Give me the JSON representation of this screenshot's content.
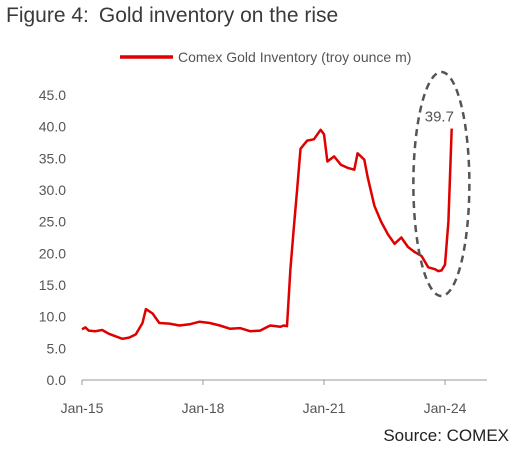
{
  "header": {
    "figure_number": "Figure 4:",
    "title": "Gold inventory on the rise"
  },
  "source": "Source: COMEX",
  "chart_data": {
    "type": "line",
    "title": "Gold inventory on the rise",
    "xlabel": "",
    "ylabel": "",
    "ylim": [
      0,
      45
    ],
    "yticks": [
      "0.0",
      "5.0",
      "10.0",
      "15.0",
      "20.0",
      "25.0",
      "30.0",
      "35.0",
      "40.0",
      "45.0"
    ],
    "xticks": [
      {
        "label": "Jan-15",
        "x": "2015-01"
      },
      {
        "label": "Jan-18",
        "x": "2018-01"
      },
      {
        "label": "Jan-21",
        "x": "2021-01"
      },
      {
        "label": "Jan-24",
        "x": "2024-01"
      }
    ],
    "xlim": [
      "2015-01",
      "2024-03"
    ],
    "grid": false,
    "legend": "top",
    "annotation": {
      "text": "39.7",
      "x": "2024-02",
      "y": 39.7,
      "style": "dashed ellipse"
    },
    "series": [
      {
        "name": "Comex Gold Inventory (troy ounce m)",
        "color": "#e00000",
        "points": [
          [
            "2015-01",
            8.0
          ],
          [
            "2015-02",
            8.3
          ],
          [
            "2015-03",
            7.8
          ],
          [
            "2015-05",
            7.7
          ],
          [
            "2015-07",
            7.9
          ],
          [
            "2015-09",
            7.3
          ],
          [
            "2015-11",
            6.9
          ],
          [
            "2016-01",
            6.5
          ],
          [
            "2016-03",
            6.7
          ],
          [
            "2016-05",
            7.2
          ],
          [
            "2016-07",
            9.0
          ],
          [
            "2016-08",
            11.2
          ],
          [
            "2016-10",
            10.5
          ],
          [
            "2016-12",
            9.0
          ],
          [
            "2017-03",
            8.9
          ],
          [
            "2017-06",
            8.6
          ],
          [
            "2017-09",
            8.8
          ],
          [
            "2017-12",
            9.2
          ],
          [
            "2018-03",
            9.0
          ],
          [
            "2018-06",
            8.6
          ],
          [
            "2018-09",
            8.1
          ],
          [
            "2018-12",
            8.2
          ],
          [
            "2019-03",
            7.7
          ],
          [
            "2019-06",
            7.8
          ],
          [
            "2019-09",
            8.6
          ],
          [
            "2019-12",
            8.4
          ],
          [
            "2020-01",
            8.6
          ],
          [
            "2020-02",
            8.5
          ],
          [
            "2020-03",
            17.5
          ],
          [
            "2020-04",
            24.0
          ],
          [
            "2020-05",
            30.0
          ],
          [
            "2020-06",
            36.5
          ],
          [
            "2020-08",
            37.8
          ],
          [
            "2020-10",
            38.0
          ],
          [
            "2020-12",
            39.5
          ],
          [
            "2021-01",
            38.8
          ],
          [
            "2021-02",
            34.5
          ],
          [
            "2021-04",
            35.3
          ],
          [
            "2021-06",
            34.0
          ],
          [
            "2021-08",
            33.5
          ],
          [
            "2021-10",
            33.2
          ],
          [
            "2021-11",
            35.8
          ],
          [
            "2022-01",
            34.8
          ],
          [
            "2022-02",
            32.0
          ],
          [
            "2022-04",
            27.5
          ],
          [
            "2022-06",
            25.0
          ],
          [
            "2022-08",
            23.0
          ],
          [
            "2022-10",
            21.5
          ],
          [
            "2022-12",
            22.5
          ],
          [
            "2023-02",
            21.0
          ],
          [
            "2023-04",
            20.2
          ],
          [
            "2023-06",
            19.6
          ],
          [
            "2023-08",
            17.8
          ],
          [
            "2023-10",
            17.5
          ],
          [
            "2023-11",
            17.2
          ],
          [
            "2023-12",
            17.3
          ],
          [
            "2024-01",
            18.2
          ],
          [
            "2024-02",
            25.0
          ],
          [
            "2024-03",
            39.7
          ]
        ]
      }
    ]
  }
}
